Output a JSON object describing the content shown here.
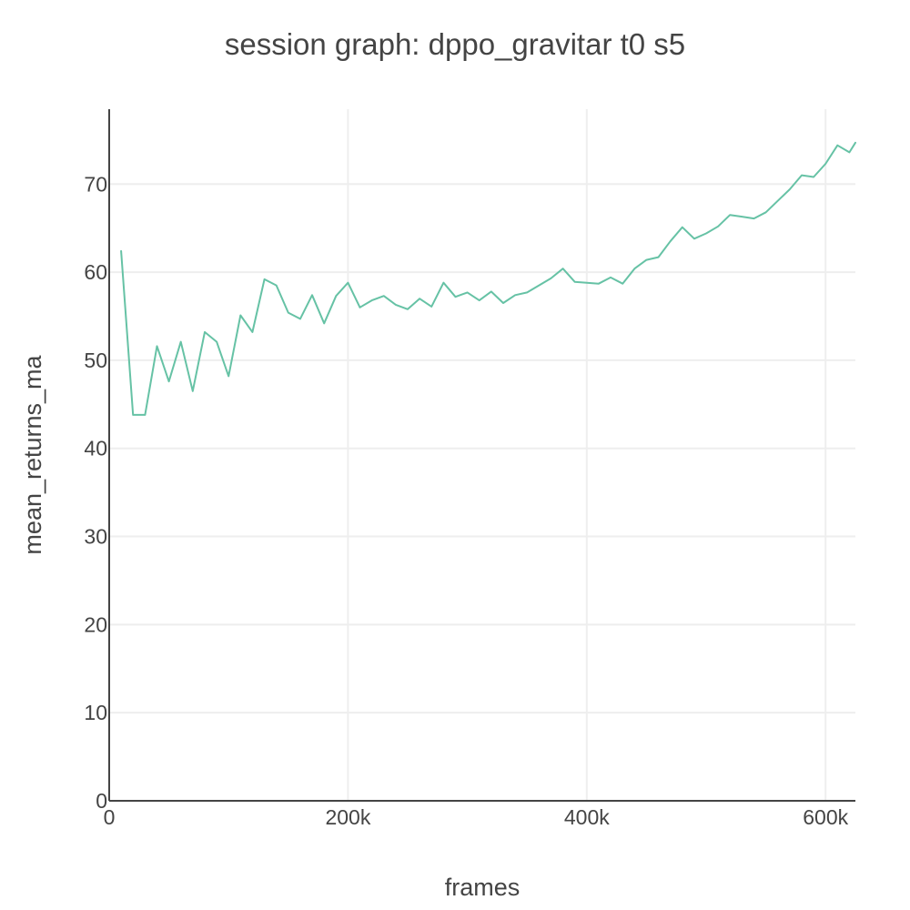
{
  "chart_data": {
    "type": "line",
    "title": "session graph: dppo_gravitar t0 s5",
    "xlabel": "frames",
    "ylabel": "mean_returns_ma",
    "xlim": [
      0,
      625000
    ],
    "ylim": [
      0,
      78.5
    ],
    "x_ticks": [
      {
        "value": 0,
        "label": "0"
      },
      {
        "value": 200000,
        "label": "200k"
      },
      {
        "value": 400000,
        "label": "400k"
      },
      {
        "value": 600000,
        "label": "600k"
      }
    ],
    "y_ticks": [
      {
        "value": 0,
        "label": "0"
      },
      {
        "value": 10,
        "label": "10"
      },
      {
        "value": 20,
        "label": "20"
      },
      {
        "value": 30,
        "label": "30"
      },
      {
        "value": 40,
        "label": "40"
      },
      {
        "value": 50,
        "label": "50"
      },
      {
        "value": 60,
        "label": "60"
      },
      {
        "value": 70,
        "label": "70"
      }
    ],
    "grid": true,
    "colors": {
      "series": "#66c2a5"
    },
    "series": [
      {
        "x": [
          10000,
          20000,
          30000,
          40000,
          50000,
          60000,
          70000,
          80000,
          90000,
          100000,
          110000,
          120000,
          130000,
          140000,
          150000,
          160000,
          170000,
          180000,
          190000,
          200000,
          210000,
          220000,
          230000,
          240000,
          250000,
          260000,
          270000,
          280000,
          290000,
          300000,
          310000,
          320000,
          330000,
          340000,
          350000,
          360000,
          370000,
          380000,
          390000,
          400000,
          410000,
          420000,
          430000,
          440000,
          450000,
          460000,
          470000,
          480000,
          490000,
          500000,
          510000,
          520000,
          530000,
          540000,
          550000,
          560000,
          570000,
          580000,
          590000,
          600000,
          610000,
          620000,
          625000
        ],
        "y": [
          62.4,
          43.8,
          43.8,
          51.6,
          47.6,
          52.1,
          46.5,
          53.2,
          52.1,
          48.2,
          55.1,
          53.2,
          59.2,
          58.5,
          55.4,
          54.7,
          57.4,
          54.2,
          57.3,
          58.8,
          56.0,
          56.8,
          57.3,
          56.3,
          55.8,
          57.0,
          56.1,
          58.8,
          57.2,
          57.7,
          56.8,
          57.8,
          56.5,
          57.4,
          57.7,
          58.5,
          59.3,
          60.4,
          58.9,
          58.8,
          58.7,
          59.4,
          58.7,
          60.4,
          61.4,
          61.7,
          63.5,
          65.1,
          63.8,
          64.4,
          65.2,
          66.5,
          66.3,
          66.1,
          66.8,
          68.1,
          69.4,
          71.0,
          70.8,
          72.3,
          74.4,
          73.6,
          74.7
        ]
      }
    ]
  }
}
